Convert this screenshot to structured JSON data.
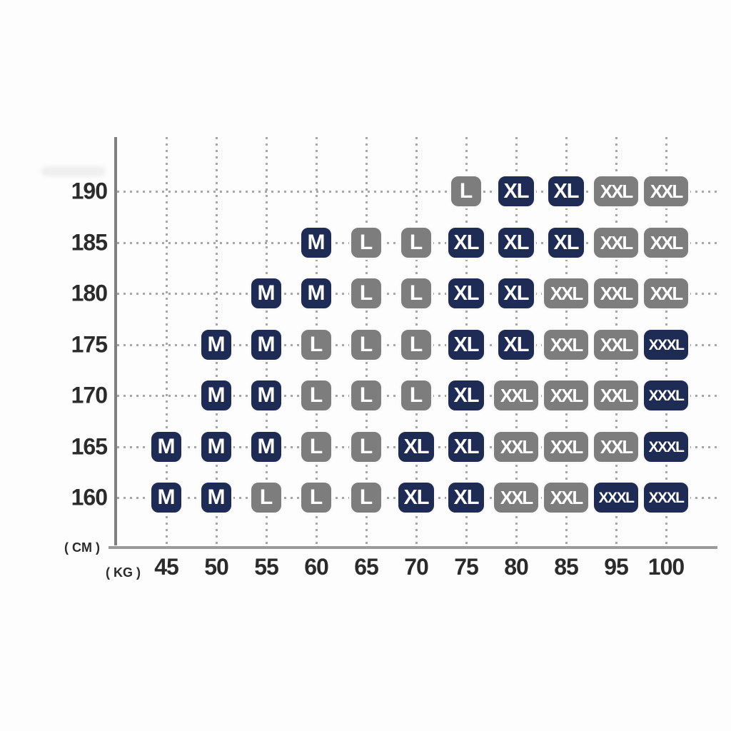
{
  "chart_data": {
    "type": "table",
    "title": "",
    "description": "Clothing size chart: height (cm) vs weight (kg) with recommended size badges",
    "y_axis": {
      "unit_label": "( CM )",
      "ticks": [
        190,
        185,
        180,
        175,
        170,
        165,
        160
      ]
    },
    "x_axis": {
      "unit_label": "( KG )",
      "ticks": [
        45,
        50,
        55,
        60,
        65,
        70,
        75,
        80,
        85,
        95,
        100
      ]
    },
    "grid": "dotted",
    "legend": "none",
    "colors": {
      "navy": "#1e2b54",
      "gray": "#7d7d7d",
      "badge_text": "#ffffff",
      "axis": "#8a8a8a",
      "tick_text": "#2b2b2b"
    },
    "cells": [
      {
        "height_cm": 190,
        "weight_kg": 75,
        "size": "L",
        "variant": "gray"
      },
      {
        "height_cm": 190,
        "weight_kg": 80,
        "size": "XL",
        "variant": "navy"
      },
      {
        "height_cm": 190,
        "weight_kg": 85,
        "size": "XL",
        "variant": "navy"
      },
      {
        "height_cm": 190,
        "weight_kg": 95,
        "size": "XXL",
        "variant": "gray"
      },
      {
        "height_cm": 190,
        "weight_kg": 100,
        "size": "XXL",
        "variant": "gray"
      },
      {
        "height_cm": 185,
        "weight_kg": 60,
        "size": "M",
        "variant": "navy"
      },
      {
        "height_cm": 185,
        "weight_kg": 65,
        "size": "L",
        "variant": "gray"
      },
      {
        "height_cm": 185,
        "weight_kg": 70,
        "size": "L",
        "variant": "gray"
      },
      {
        "height_cm": 185,
        "weight_kg": 75,
        "size": "XL",
        "variant": "navy"
      },
      {
        "height_cm": 185,
        "weight_kg": 80,
        "size": "XL",
        "variant": "navy"
      },
      {
        "height_cm": 185,
        "weight_kg": 85,
        "size": "XL",
        "variant": "navy"
      },
      {
        "height_cm": 185,
        "weight_kg": 95,
        "size": "XXL",
        "variant": "gray"
      },
      {
        "height_cm": 185,
        "weight_kg": 100,
        "size": "XXL",
        "variant": "gray"
      },
      {
        "height_cm": 180,
        "weight_kg": 55,
        "size": "M",
        "variant": "navy"
      },
      {
        "height_cm": 180,
        "weight_kg": 60,
        "size": "M",
        "variant": "navy"
      },
      {
        "height_cm": 180,
        "weight_kg": 65,
        "size": "L",
        "variant": "gray"
      },
      {
        "height_cm": 180,
        "weight_kg": 70,
        "size": "L",
        "variant": "gray"
      },
      {
        "height_cm": 180,
        "weight_kg": 75,
        "size": "XL",
        "variant": "navy"
      },
      {
        "height_cm": 180,
        "weight_kg": 80,
        "size": "XL",
        "variant": "navy"
      },
      {
        "height_cm": 180,
        "weight_kg": 85,
        "size": "XXL",
        "variant": "gray"
      },
      {
        "height_cm": 180,
        "weight_kg": 95,
        "size": "XXL",
        "variant": "gray"
      },
      {
        "height_cm": 180,
        "weight_kg": 100,
        "size": "XXL",
        "variant": "gray"
      },
      {
        "height_cm": 175,
        "weight_kg": 50,
        "size": "M",
        "variant": "navy"
      },
      {
        "height_cm": 175,
        "weight_kg": 55,
        "size": "M",
        "variant": "navy"
      },
      {
        "height_cm": 175,
        "weight_kg": 60,
        "size": "L",
        "variant": "gray"
      },
      {
        "height_cm": 175,
        "weight_kg": 65,
        "size": "L",
        "variant": "gray"
      },
      {
        "height_cm": 175,
        "weight_kg": 70,
        "size": "L",
        "variant": "gray"
      },
      {
        "height_cm": 175,
        "weight_kg": 75,
        "size": "XL",
        "variant": "navy"
      },
      {
        "height_cm": 175,
        "weight_kg": 80,
        "size": "XL",
        "variant": "navy"
      },
      {
        "height_cm": 175,
        "weight_kg": 85,
        "size": "XXL",
        "variant": "gray"
      },
      {
        "height_cm": 175,
        "weight_kg": 95,
        "size": "XXL",
        "variant": "gray"
      },
      {
        "height_cm": 175,
        "weight_kg": 100,
        "size": "XXXL",
        "variant": "navy"
      },
      {
        "height_cm": 170,
        "weight_kg": 50,
        "size": "M",
        "variant": "navy"
      },
      {
        "height_cm": 170,
        "weight_kg": 55,
        "size": "M",
        "variant": "navy"
      },
      {
        "height_cm": 170,
        "weight_kg": 60,
        "size": "L",
        "variant": "gray"
      },
      {
        "height_cm": 170,
        "weight_kg": 65,
        "size": "L",
        "variant": "gray"
      },
      {
        "height_cm": 170,
        "weight_kg": 70,
        "size": "L",
        "variant": "gray"
      },
      {
        "height_cm": 170,
        "weight_kg": 75,
        "size": "XL",
        "variant": "navy"
      },
      {
        "height_cm": 170,
        "weight_kg": 80,
        "size": "XXL",
        "variant": "gray"
      },
      {
        "height_cm": 170,
        "weight_kg": 85,
        "size": "XXL",
        "variant": "gray"
      },
      {
        "height_cm": 170,
        "weight_kg": 95,
        "size": "XXL",
        "variant": "gray"
      },
      {
        "height_cm": 170,
        "weight_kg": 100,
        "size": "XXXL",
        "variant": "navy"
      },
      {
        "height_cm": 165,
        "weight_kg": 45,
        "size": "M",
        "variant": "navy"
      },
      {
        "height_cm": 165,
        "weight_kg": 50,
        "size": "M",
        "variant": "navy"
      },
      {
        "height_cm": 165,
        "weight_kg": 55,
        "size": "M",
        "variant": "navy"
      },
      {
        "height_cm": 165,
        "weight_kg": 60,
        "size": "L",
        "variant": "gray"
      },
      {
        "height_cm": 165,
        "weight_kg": 65,
        "size": "L",
        "variant": "gray"
      },
      {
        "height_cm": 165,
        "weight_kg": 70,
        "size": "XL",
        "variant": "navy"
      },
      {
        "height_cm": 165,
        "weight_kg": 75,
        "size": "XL",
        "variant": "navy"
      },
      {
        "height_cm": 165,
        "weight_kg": 80,
        "size": "XXL",
        "variant": "gray"
      },
      {
        "height_cm": 165,
        "weight_kg": 85,
        "size": "XXL",
        "variant": "gray"
      },
      {
        "height_cm": 165,
        "weight_kg": 95,
        "size": "XXL",
        "variant": "gray"
      },
      {
        "height_cm": 165,
        "weight_kg": 100,
        "size": "XXXL",
        "variant": "navy"
      },
      {
        "height_cm": 160,
        "weight_kg": 45,
        "size": "M",
        "variant": "navy"
      },
      {
        "height_cm": 160,
        "weight_kg": 50,
        "size": "M",
        "variant": "navy"
      },
      {
        "height_cm": 160,
        "weight_kg": 55,
        "size": "L",
        "variant": "gray"
      },
      {
        "height_cm": 160,
        "weight_kg": 60,
        "size": "L",
        "variant": "gray"
      },
      {
        "height_cm": 160,
        "weight_kg": 65,
        "size": "L",
        "variant": "gray"
      },
      {
        "height_cm": 160,
        "weight_kg": 70,
        "size": "XL",
        "variant": "navy"
      },
      {
        "height_cm": 160,
        "weight_kg": 75,
        "size": "XL",
        "variant": "navy"
      },
      {
        "height_cm": 160,
        "weight_kg": 80,
        "size": "XXL",
        "variant": "gray"
      },
      {
        "height_cm": 160,
        "weight_kg": 85,
        "size": "XXL",
        "variant": "gray"
      },
      {
        "height_cm": 160,
        "weight_kg": 95,
        "size": "XXXL",
        "variant": "navy"
      },
      {
        "height_cm": 160,
        "weight_kg": 100,
        "size": "XXXL",
        "variant": "navy"
      }
    ]
  }
}
